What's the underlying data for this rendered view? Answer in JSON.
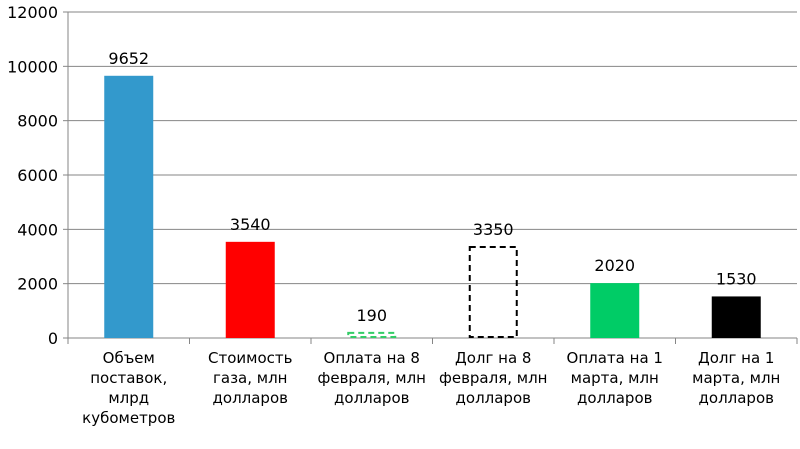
{
  "chart_data": {
    "type": "bar",
    "categories": [
      "Объем\nпоставок,\nмлрд\nкубометров",
      "Стоимость\nгаза, млн\nдолларов",
      "Оплата на 8\nфевраля, млн\nдолларов",
      "Долг на 8\nфевраля, млн\nдолларов",
      "Оплата на 1\nмарта, млн\nдолларов",
      "Долг на 1\nмарта, млн\nдолларов"
    ],
    "values": [
      9652,
      3540,
      190,
      3350,
      2020,
      1530
    ],
    "value_labels": [
      "9652",
      "3540",
      "190",
      "3350",
      "2020",
      "1530"
    ],
    "colors": [
      "#3399CC",
      "#FF0000",
      "#33CC66",
      "#000000",
      "#00CC66",
      "#000000"
    ],
    "styles": [
      "solid",
      "solid",
      "dashed",
      "dashed",
      "solid",
      "solid"
    ],
    "ylim": [
      0,
      12000
    ],
    "yticks": [
      "0",
      "2000",
      "4000",
      "6000",
      "8000",
      "10000",
      "12000"
    ],
    "title": "",
    "xlabel": "",
    "ylabel": "",
    "grid": true
  }
}
